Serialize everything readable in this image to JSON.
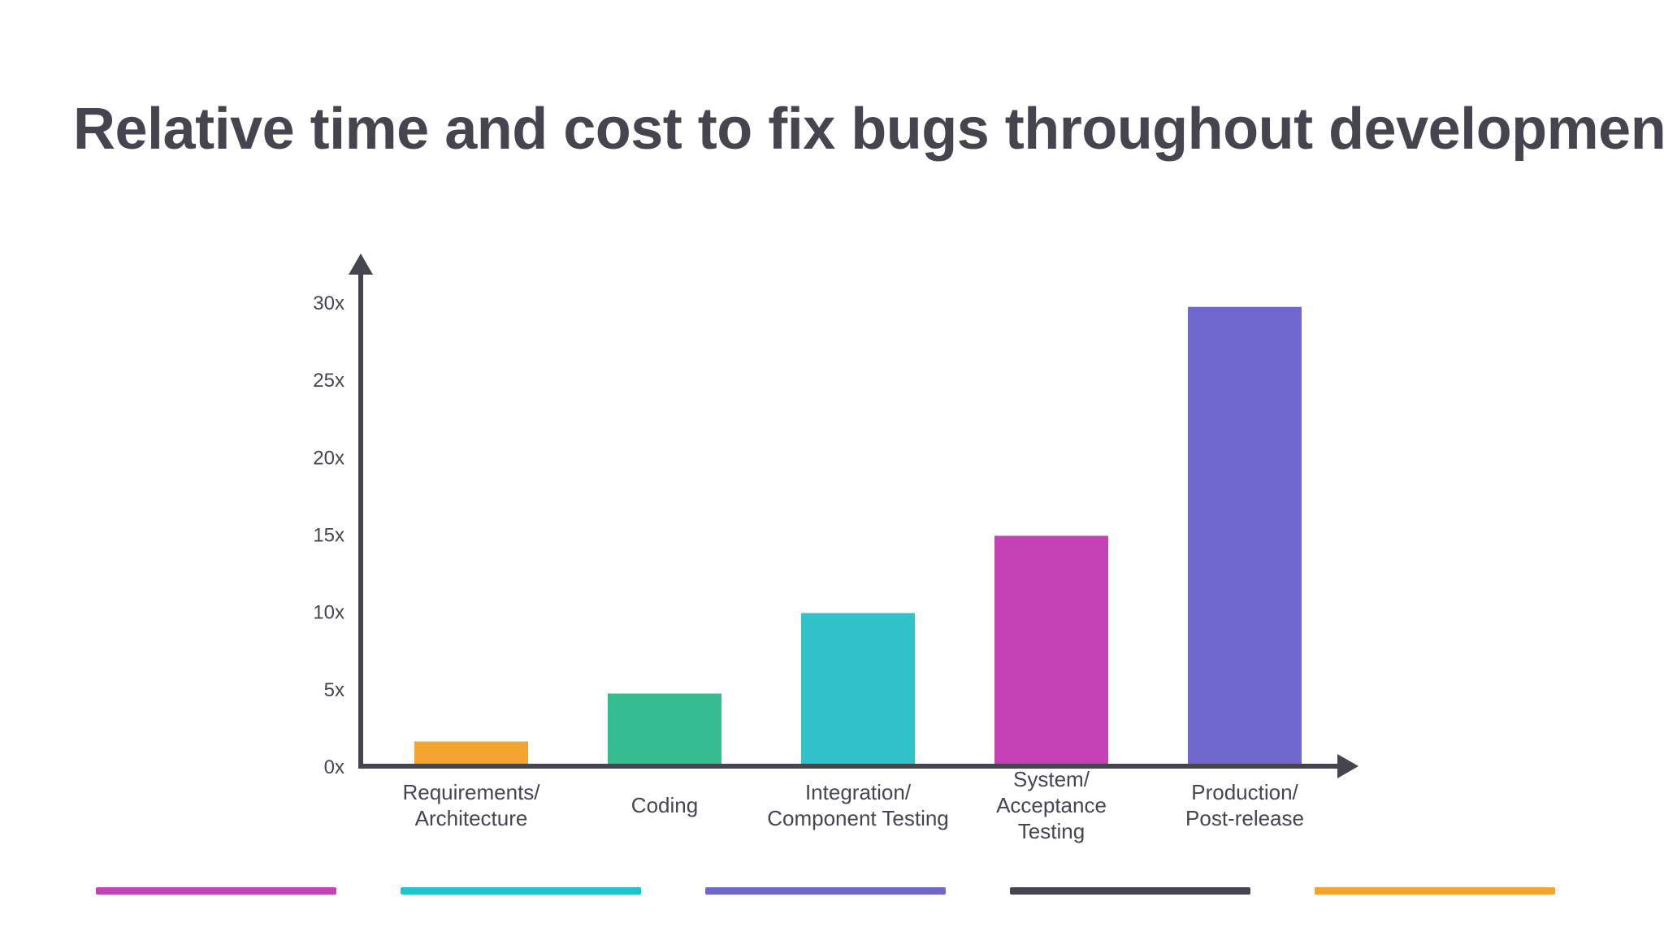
{
  "title": "Relative time and cost to fix bugs throughout development",
  "chart_data": {
    "type": "bar",
    "categories": [
      [
        "Requirements/",
        "Architecture"
      ],
      [
        "Coding"
      ],
      [
        "Integration/",
        "Component Testing"
      ],
      [
        "System/",
        "Acceptance",
        "Testing"
      ],
      [
        "Production/",
        "Post-release"
      ]
    ],
    "values": [
      1.6,
      4.7,
      9.9,
      14.9,
      29.7
    ],
    "colors": [
      "#f5a52f",
      "#35bd91",
      "#30c4ca",
      "#c542b6",
      "#6f67cc"
    ],
    "yticks": [
      "0x",
      "5x",
      "10x",
      "15x",
      "20x",
      "25x",
      "30x"
    ],
    "ylim": [
      0,
      30
    ],
    "grid": false,
    "axis_color": "#45454f"
  },
  "footer_stripes": [
    "#c542b6",
    "#1ec3cb",
    "#6f67cc",
    "#45454f",
    "#f5a52f"
  ]
}
